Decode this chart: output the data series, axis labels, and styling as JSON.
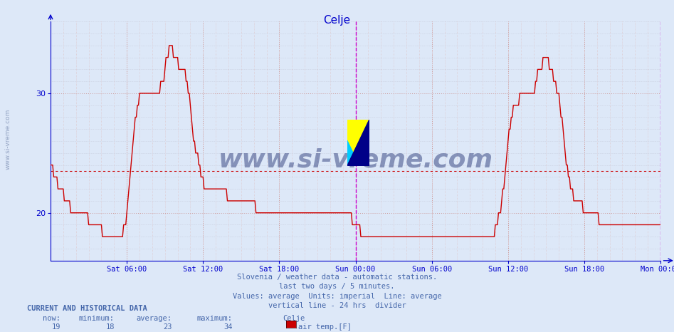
{
  "title": "Celje",
  "title_color": "#0000cc",
  "bg_color": "#dde8f8",
  "plot_bg_color": "#dde8f8",
  "line_color": "#cc0000",
  "avg_line_color": "#cc0000",
  "avg_value": 23.5,
  "y_min": 16,
  "y_max": 36,
  "y_ticks": [
    20,
    30
  ],
  "grid_color_major": "#cc9999",
  "grid_color_minor": "#bbbbcc",
  "divider_color": "#cc00cc",
  "axis_color": "#0000cc",
  "tick_color": "#0000cc",
  "footer_color": "#4466aa",
  "footer_lines": [
    "Slovenia / weather data - automatic stations.",
    "last two days / 5 minutes.",
    "Values: average  Units: imperial  Line: average",
    "vertical line - 24 hrs  divider"
  ],
  "current_label": "CURRENT AND HISTORICAL DATA",
  "stats_headers": [
    "now:",
    "minimum:",
    "average:",
    "maximum:",
    "Celje"
  ],
  "stats_values": [
    "19",
    "18",
    "23",
    "34"
  ],
  "legend_label": "air temp.[F]",
  "legend_color": "#cc0000",
  "watermark_text": "www.si-vreme.com",
  "side_text": "www.si-vreme.com",
  "x_tick_labels": [
    "Sat 06:00",
    "Sat 12:00",
    "Sat 18:00",
    "Sun 00:00",
    "Sun 06:00",
    "Sun 12:00",
    "Sun 18:00",
    "Mon 00:00"
  ],
  "x_tick_positions": [
    72,
    144,
    216,
    288,
    360,
    432,
    504,
    576
  ],
  "total_points": 576,
  "divider_x": 288,
  "data_y": [
    24,
    24,
    24,
    23,
    23,
    23,
    23,
    22,
    22,
    22,
    22,
    22,
    22,
    21,
    21,
    21,
    21,
    21,
    21,
    20,
    20,
    20,
    20,
    20,
    20,
    20,
    20,
    20,
    20,
    20,
    20,
    20,
    20,
    20,
    20,
    20,
    19,
    19,
    19,
    19,
    19,
    19,
    19,
    19,
    19,
    19,
    19,
    19,
    19,
    18,
    18,
    18,
    18,
    18,
    18,
    18,
    18,
    18,
    18,
    18,
    18,
    18,
    18,
    18,
    18,
    18,
    18,
    18,
    18,
    19,
    19,
    19,
    20,
    21,
    22,
    23,
    24,
    25,
    26,
    27,
    28,
    28,
    29,
    29,
    30,
    30,
    30,
    30,
    30,
    30,
    30,
    30,
    30,
    30,
    30,
    30,
    30,
    30,
    30,
    30,
    30,
    30,
    30,
    30,
    31,
    31,
    31,
    31,
    32,
    33,
    33,
    33,
    34,
    34,
    34,
    34,
    33,
    33,
    33,
    33,
    33,
    32,
    32,
    32,
    32,
    32,
    32,
    32,
    31,
    31,
    30,
    30,
    29,
    28,
    27,
    26,
    26,
    25,
    25,
    25,
    24,
    24,
    23,
    23,
    23,
    22,
    22,
    22,
    22,
    22,
    22,
    22,
    22,
    22,
    22,
    22,
    22,
    22,
    22,
    22,
    22,
    22,
    22,
    22,
    22,
    22,
    22,
    21,
    21,
    21,
    21,
    21,
    21,
    21,
    21,
    21,
    21,
    21,
    21,
    21,
    21,
    21,
    21,
    21,
    21,
    21,
    21,
    21,
    21,
    21,
    21,
    21,
    21,
    21,
    20,
    20,
    20,
    20,
    20,
    20,
    20,
    20,
    20,
    20,
    20,
    20,
    20,
    20,
    20,
    20,
    20,
    20,
    20,
    20,
    20,
    20,
    20,
    20,
    20,
    20,
    20,
    20,
    20,
    20,
    20,
    20,
    20,
    20,
    20,
    20,
    20,
    20,
    20,
    20,
    20,
    20,
    20,
    20,
    20,
    20,
    20,
    20,
    20,
    20,
    20,
    20,
    20,
    20,
    20,
    20,
    20,
    20,
    20,
    20,
    20,
    20,
    20,
    20,
    20,
    20,
    20,
    20,
    20,
    20,
    20,
    20,
    20,
    20,
    20,
    20,
    20,
    20,
    20,
    20,
    20,
    20,
    20,
    20,
    20,
    20,
    20,
    20,
    20,
    20,
    20,
    19,
    19,
    19,
    19,
    19,
    19,
    19,
    19,
    18,
    18,
    18,
    18,
    18,
    18,
    18,
    18,
    18,
    18,
    18,
    18,
    18,
    18,
    18,
    18,
    18,
    18,
    18,
    18,
    18,
    18,
    18,
    18,
    18,
    18,
    18,
    18,
    18,
    18,
    18,
    18,
    18,
    18,
    18,
    18,
    18,
    18,
    18,
    18,
    18,
    18,
    18,
    18,
    18,
    18,
    18,
    18,
    18,
    18,
    18,
    18,
    18,
    18,
    18,
    18,
    18,
    18,
    18,
    18,
    18,
    18,
    18,
    18,
    18,
    18,
    18,
    18,
    18,
    18,
    18,
    18,
    18,
    18,
    18,
    18,
    18,
    18,
    18,
    18,
    18,
    18,
    18,
    18,
    18,
    18,
    18,
    18,
    18,
    18,
    18,
    18,
    18,
    18,
    18,
    18,
    18,
    18,
    18,
    18,
    18,
    18,
    18,
    18,
    18,
    18,
    18,
    18,
    18,
    18,
    18,
    18,
    18,
    18,
    18,
    18,
    18,
    18,
    18,
    18,
    18,
    18,
    18,
    18,
    18,
    18,
    18,
    19,
    19,
    19,
    20,
    20,
    20,
    21,
    22,
    22,
    23,
    24,
    25,
    26,
    27,
    27,
    28,
    28,
    29,
    29,
    29,
    29,
    29,
    29,
    30,
    30,
    30,
    30,
    30,
    30,
    30,
    30,
    30,
    30,
    30,
    30,
    30,
    30,
    30,
    31,
    31,
    32,
    32,
    32,
    32,
    32,
    33,
    33,
    33,
    33,
    33,
    33,
    32,
    32,
    32,
    32,
    31,
    31,
    31,
    30,
    30,
    30,
    29,
    28,
    28,
    27,
    26,
    25,
    24,
    24,
    23,
    23,
    22,
    22,
    22,
    21,
    21,
    21,
    21,
    21,
    21,
    21,
    21,
    21,
    20,
    20,
    20,
    20,
    20,
    20,
    20,
    20,
    20,
    20,
    20,
    20,
    20,
    20,
    20,
    19,
    19,
    19,
    19,
    19,
    19,
    19,
    19,
    19,
    19,
    19,
    19,
    19,
    19,
    19,
    19,
    19,
    19,
    19,
    19,
    19,
    19,
    19,
    19,
    19,
    19,
    19,
    19,
    19,
    19,
    19,
    19,
    19,
    19,
    19,
    19,
    19,
    19,
    19,
    19,
    19,
    19,
    19,
    19,
    19,
    19,
    19,
    19,
    19,
    19,
    19,
    19,
    19,
    19,
    19,
    19,
    19,
    19,
    19,
    19,
    19,
    19,
    19,
    19,
    19,
    19,
    19,
    19,
    19
  ]
}
